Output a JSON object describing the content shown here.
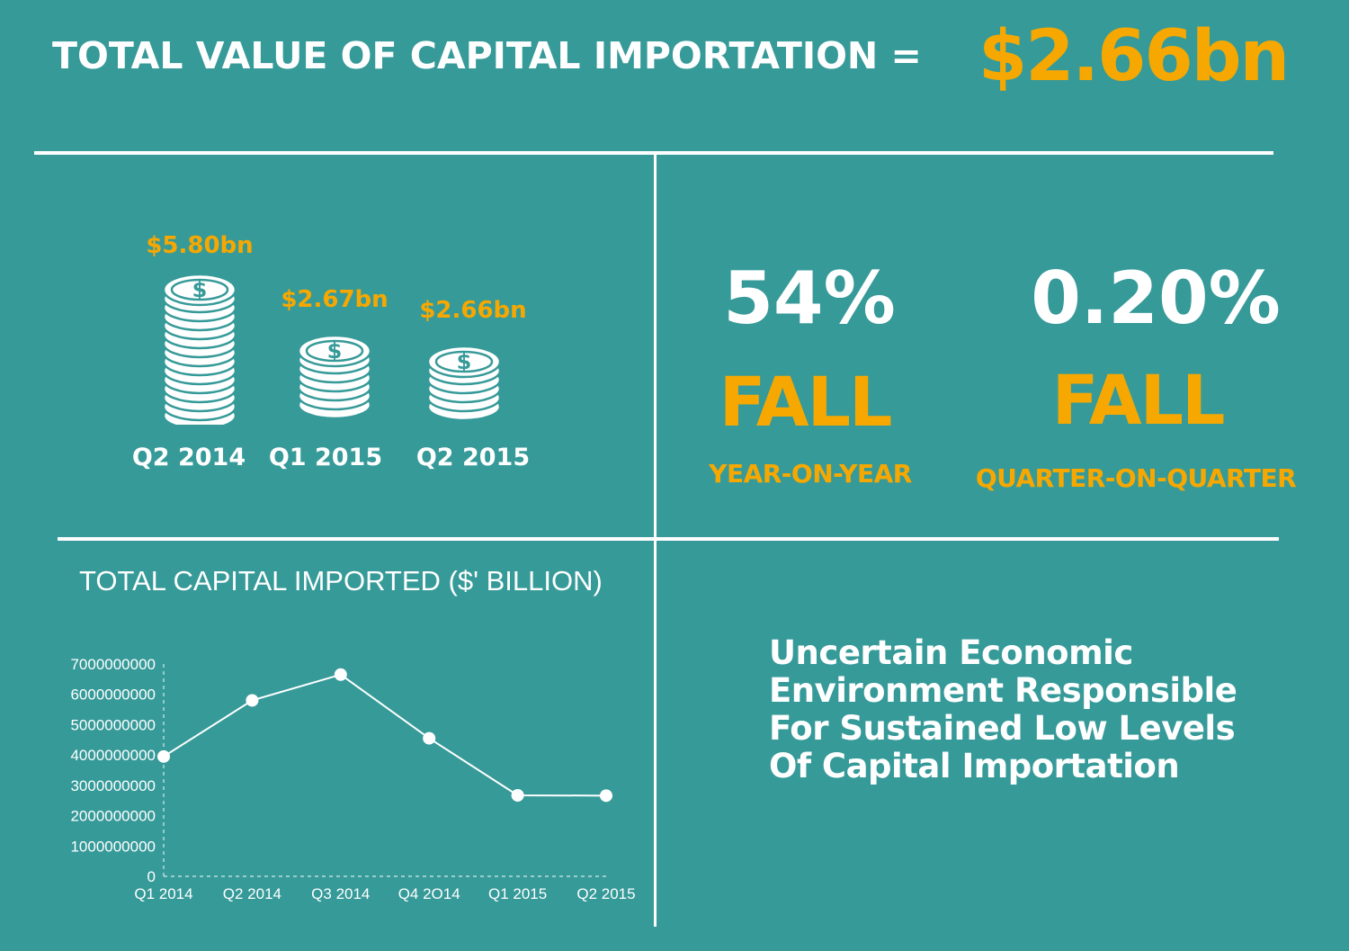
{
  "header": {
    "title": "TOTAL VALUE OF CAPITAL IMPORTATION =",
    "value": "$2.66bn"
  },
  "colors": {
    "background": "#369a99",
    "accent": "#f7a800",
    "foreground": "#ffffff"
  },
  "coins": [
    {
      "value": "$5.80bn",
      "label": "Q2 2014",
      "icon": "coin-stack-icon"
    },
    {
      "value": "$2.67bn",
      "label": "Q1 2015",
      "icon": "coin-stack-icon"
    },
    {
      "value": "$2.66bn",
      "label": "Q2 2015",
      "icon": "coin-stack-icon"
    }
  ],
  "stats": [
    {
      "percent": "54%",
      "word": "FALL",
      "label": "YEAR-ON-YEAR"
    },
    {
      "percent": "0.20%",
      "word": "FALL",
      "label": "QUARTER-ON-QUARTER"
    }
  ],
  "message": {
    "lines": [
      "Uncertain Economic",
      "Environment Responsible",
      "For Sustained Low Levels",
      "Of Capital Importation"
    ]
  },
  "chart_data": {
    "type": "line",
    "title": "TOTAL CAPITAL IMPORTED ($' BILLION)",
    "categories": [
      "Q1 2014",
      "Q2 2014",
      "Q3 2014",
      "Q4 2O14",
      "Q1 2015",
      "Q2 2015"
    ],
    "series": [
      {
        "values": [
          3950000000,
          5800000000,
          6650000000,
          4550000000,
          2670000000,
          2660000000
        ]
      }
    ],
    "yticks": [
      "0",
      "1000000000",
      "2000000000",
      "3000000000",
      "4000000000",
      "5000000000",
      "6000000000",
      "7000000000"
    ],
    "ylim": [
      0,
      7000000000
    ],
    "grid": false
  }
}
